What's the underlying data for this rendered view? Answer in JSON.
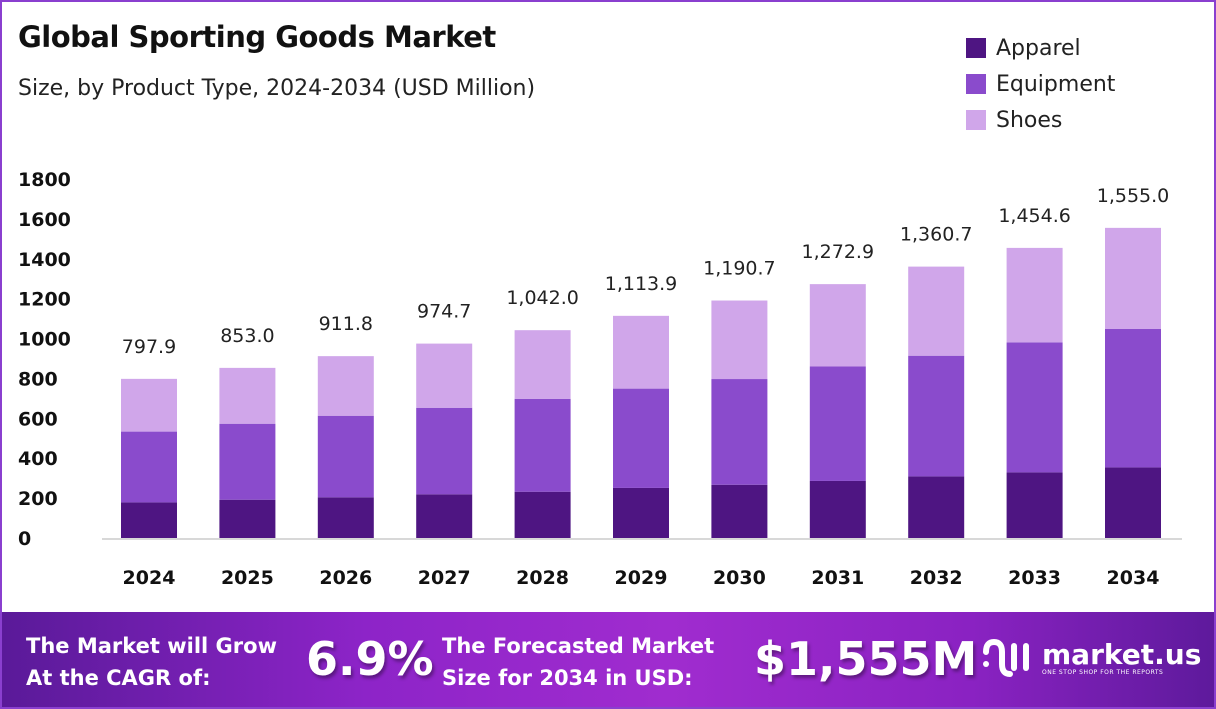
{
  "chart_data": {
    "type": "bar",
    "stacked": true,
    "title": "Global Sporting Goods Market",
    "subtitle": "Size, by Product Type, 2024-2034 (USD Million)",
    "categories": [
      "2024",
      "2025",
      "2026",
      "2027",
      "2028",
      "2029",
      "2030",
      "2031",
      "2032",
      "2033",
      "2034"
    ],
    "series": [
      {
        "name": "Apparel",
        "color": "#4e1582",
        "values": [
          178.5,
          192,
          204,
          219,
          232,
          251,
          267,
          286,
          309,
          329,
          354
        ]
      },
      {
        "name": "Equipment",
        "color": "#8a4bcc",
        "values": [
          355,
          381,
          409,
          434,
          466,
          498,
          530,
          574,
          605,
          652,
          694
        ]
      },
      {
        "name": "Shoes",
        "color": "#d0a6ea",
        "values": [
          264.4,
          280,
          298.8,
          321.7,
          344,
          364.9,
          393.7,
          412.9,
          446.7,
          473.6,
          507
        ]
      }
    ],
    "totals": [
      "797.9",
      "853.0",
      "911.8",
      "974.7",
      "1,042.0",
      "1,113.9",
      "1,190.7",
      "1,272.9",
      "1,360.7",
      "1,454.6",
      "1,555.0"
    ],
    "yticks": [
      "0",
      "200",
      "400",
      "600",
      "800",
      "1000",
      "1200",
      "1400",
      "1600",
      "1800"
    ],
    "ylim": [
      0,
      1800
    ],
    "grid": false,
    "legend": "top-right"
  },
  "banner": {
    "cagr_label_1": "The Market will Grow",
    "cagr_label_2": "At the CAGR of:",
    "cagr_value": "6.9%",
    "forecast_label_1": "The Forecasted Market",
    "forecast_label_2": "Size for 2034 in USD:",
    "forecast_value": "$1,555M",
    "logo_text": "market.us",
    "logo_tagline": "ONE STOP SHOP FOR THE REPORTS"
  }
}
